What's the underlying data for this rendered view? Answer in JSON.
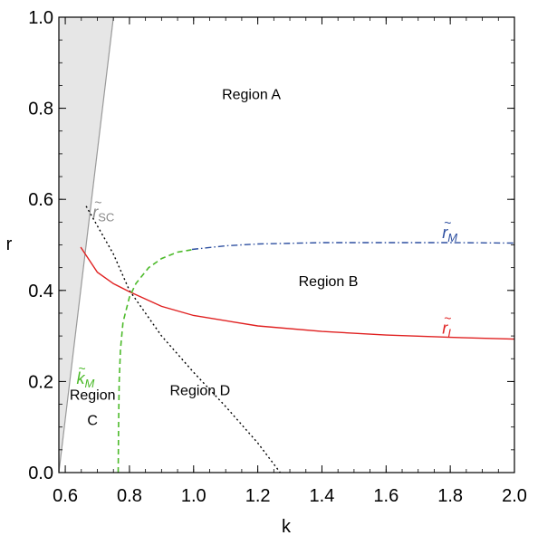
{
  "chart_data": {
    "type": "line",
    "title": "",
    "xlabel": "k",
    "ylabel": "r",
    "xlim": [
      0.58,
      2.0
    ],
    "ylim": [
      0.0,
      1.0
    ],
    "x_ticks": [
      "0.6",
      "0.8",
      "1.0",
      "1.2",
      "1.4",
      "1.6",
      "1.8",
      "2.0"
    ],
    "y_ticks": [
      "0.0",
      "0.2",
      "0.4",
      "0.6",
      "0.8",
      "1.0"
    ],
    "x_tick_values": [
      0.6,
      0.8,
      1.0,
      1.2,
      1.4,
      1.6,
      1.8,
      2.0
    ],
    "y_tick_values": [
      0.0,
      0.2,
      0.4,
      0.6,
      0.8,
      1.0
    ],
    "grid": false,
    "shaded_region": {
      "color": "#e6e6e6",
      "border_color": "#999999",
      "boundary": [
        [
          0.58,
          0.0
        ],
        [
          0.58,
          1.0
        ],
        [
          0.75,
          1.0
        ]
      ]
    },
    "series": [
      {
        "label_tilde": "r",
        "label_sub": "SC",
        "color": "#888888",
        "style": "dotted",
        "line_color": "#000000",
        "points": [
          [
            0.665,
            0.585
          ],
          [
            0.75,
            0.48
          ],
          [
            0.8,
            0.4
          ],
          [
            0.9,
            0.3
          ],
          [
            1.0,
            0.22
          ],
          [
            1.1,
            0.145
          ],
          [
            1.2,
            0.065
          ],
          [
            1.27,
            0.0
          ]
        ]
      },
      {
        "label_tilde": "r",
        "label_sub": "M",
        "color": "#2d4fa0",
        "style": "dashdot",
        "points": [
          [
            0.995,
            0.49
          ],
          [
            1.1,
            0.498
          ],
          [
            1.2,
            0.502
          ],
          [
            1.4,
            0.505
          ],
          [
            1.6,
            0.505
          ],
          [
            1.8,
            0.505
          ],
          [
            2.0,
            0.504
          ]
        ]
      },
      {
        "label_tilde": "r",
        "label_sub": "I",
        "color": "#e02020",
        "style": "solid",
        "points": [
          [
            0.648,
            0.495
          ],
          [
            0.7,
            0.44
          ],
          [
            0.75,
            0.415
          ],
          [
            0.8,
            0.397
          ],
          [
            0.9,
            0.365
          ],
          [
            1.0,
            0.345
          ],
          [
            1.2,
            0.322
          ],
          [
            1.4,
            0.31
          ],
          [
            1.6,
            0.302
          ],
          [
            1.8,
            0.297
          ],
          [
            2.0,
            0.293
          ]
        ]
      },
      {
        "label_tilde": "k",
        "label_sub": "M",
        "color": "#4cba2a",
        "style": "dashed",
        "points": [
          [
            0.765,
            0.0
          ],
          [
            0.766,
            0.1
          ],
          [
            0.768,
            0.2
          ],
          [
            0.772,
            0.27
          ],
          [
            0.78,
            0.33
          ],
          [
            0.8,
            0.385
          ],
          [
            0.82,
            0.415
          ],
          [
            0.86,
            0.45
          ],
          [
            0.9,
            0.47
          ],
          [
            0.95,
            0.484
          ],
          [
            1.0,
            0.49
          ]
        ]
      }
    ],
    "region_labels": [
      {
        "lines": [
          "Region A"
        ],
        "x": 1.18,
        "y": 0.82
      },
      {
        "lines": [
          "Region B"
        ],
        "x": 1.42,
        "y": 0.41
      },
      {
        "lines": [
          "Region",
          "C"
        ],
        "x": 0.685,
        "y": 0.16
      },
      {
        "lines": [
          "Region D"
        ],
        "x": 1.02,
        "y": 0.17
      }
    ],
    "curve_labels": [
      {
        "series": 0,
        "x": 0.685,
        "y": 0.56
      },
      {
        "series": 1,
        "x": 1.775,
        "y": 0.515
      },
      {
        "series": 2,
        "x": 1.775,
        "y": 0.305
      },
      {
        "series": 3,
        "x": 0.635,
        "y": 0.195
      }
    ]
  }
}
